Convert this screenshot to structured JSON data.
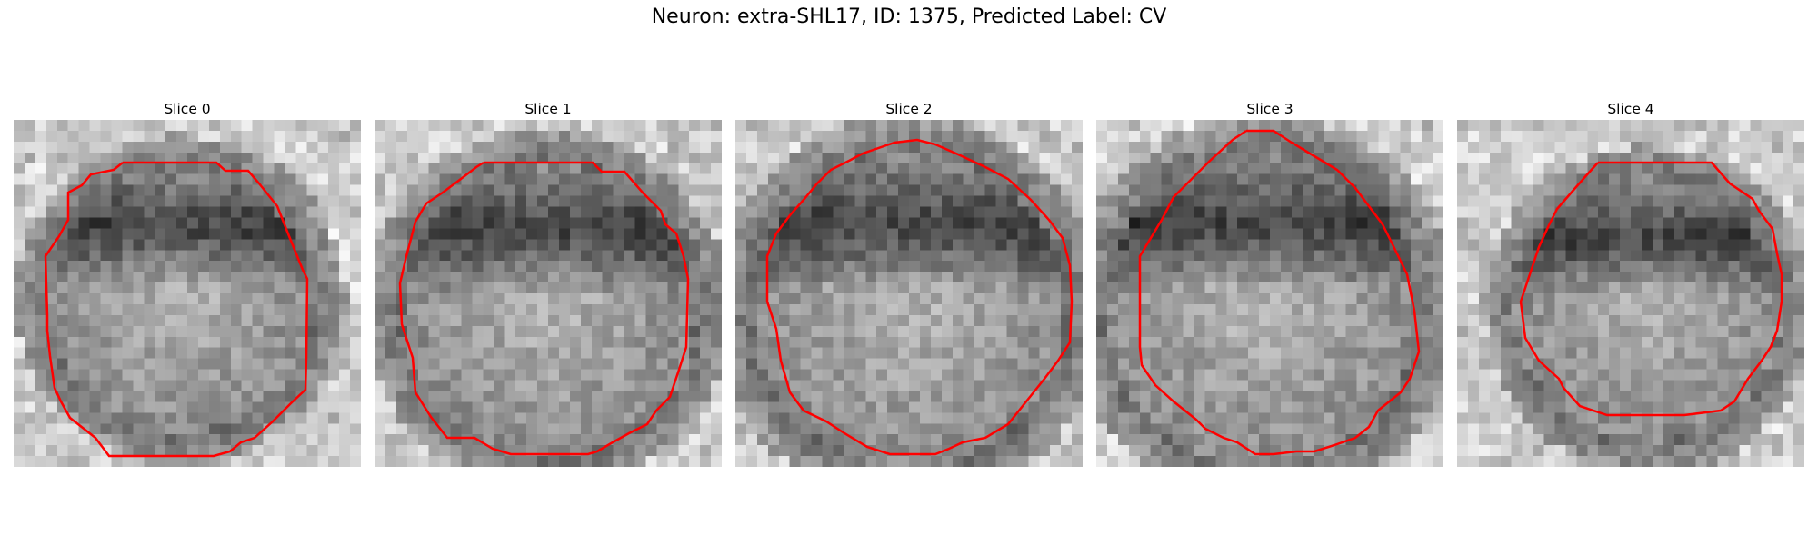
{
  "figure": {
    "title": "Neuron: extra-SHL17, ID: 1375, Predicted Label: CV"
  },
  "panels": [
    {
      "title": "Slice 0"
    },
    {
      "title": "Slice 1"
    },
    {
      "title": "Slice 2"
    },
    {
      "title": "Slice 3"
    },
    {
      "title": "Slice 4"
    }
  ],
  "colors": {
    "contour": "#ff0000",
    "colormap": "grayscale"
  }
}
